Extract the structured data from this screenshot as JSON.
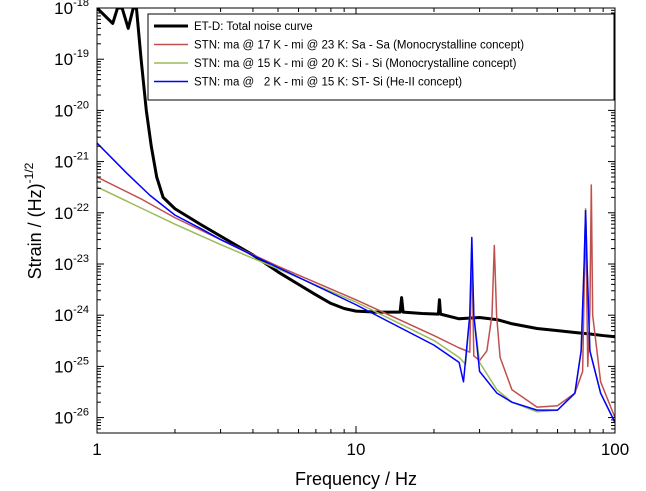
{
  "chart_data": {
    "type": "line",
    "xlabel": "Frequency / Hz",
    "ylabel": "Strain / (Hz)",
    "ylabel_exponent": "-1/2",
    "xscale": "log",
    "yscale": "log",
    "xlim": [
      1,
      100
    ],
    "ylim": [
      5e-27,
      1e-18
    ],
    "x_tick_labels": [
      "1",
      "10",
      "100"
    ],
    "y_tick_labels": [
      {
        "base": "10",
        "exp": "-18"
      },
      {
        "base": "10",
        "exp": "-19"
      },
      {
        "base": "10",
        "exp": "-20"
      },
      {
        "base": "10",
        "exp": "-21"
      },
      {
        "base": "10",
        "exp": "-22"
      },
      {
        "base": "10",
        "exp": "-23"
      },
      {
        "base": "10",
        "exp": "-24"
      },
      {
        "base": "10",
        "exp": "-25"
      },
      {
        "base": "10",
        "exp": "-26"
      }
    ],
    "legend_position": "top-right",
    "series": [
      {
        "name": "ET-D: Total noise curve",
        "color": "#000000",
        "width": 3,
        "points": [
          [
            1.0,
            1e-18
          ],
          [
            1.15,
            5e-19
          ],
          [
            1.2,
            1e-18
          ],
          [
            1.25,
            1e-18
          ],
          [
            1.32,
            4e-19
          ],
          [
            1.38,
            1e-18
          ],
          [
            1.42,
            1e-18
          ],
          [
            1.48,
            1e-19
          ],
          [
            1.55,
            1e-20
          ],
          [
            1.62,
            2e-21
          ],
          [
            1.7,
            5e-22
          ],
          [
            1.8,
            2e-22
          ],
          [
            2.0,
            1.2e-22
          ],
          [
            2.5,
            6e-23
          ],
          [
            3.0,
            3.5e-23
          ],
          [
            4.0,
            1.5e-23
          ],
          [
            5.0,
            7e-24
          ],
          [
            6.0,
            4e-24
          ],
          [
            7.0,
            2.5e-24
          ],
          [
            8.0,
            1.7e-24
          ],
          [
            9.0,
            1.35e-24
          ],
          [
            10.0,
            1.2e-24
          ],
          [
            12.0,
            1.15e-24
          ],
          [
            14.8,
            1.15e-24
          ],
          [
            15.0,
            2.2e-24
          ],
          [
            15.2,
            1.15e-24
          ],
          [
            18.0,
            1.08e-24
          ],
          [
            20.8,
            1.05e-24
          ],
          [
            21.0,
            2e-24
          ],
          [
            21.2,
            1.05e-24
          ],
          [
            25.0,
            8.5e-25
          ],
          [
            30.0,
            9e-25
          ],
          [
            35.0,
            8.2e-25
          ],
          [
            40.0,
            6.8e-25
          ],
          [
            50.0,
            5.5e-25
          ],
          [
            60.0,
            5e-25
          ],
          [
            70.0,
            4.6e-25
          ],
          [
            80.0,
            4.3e-25
          ],
          [
            90.0,
            4e-25
          ],
          [
            100.0,
            3.8e-25
          ]
        ]
      },
      {
        "name": "STN: ma @ 17 K - mi @ 23 K: Sa - Sa (Monocrystalline concept)",
        "color": "#c0504d",
        "width": 1.5,
        "points": [
          [
            1.0,
            5e-22
          ],
          [
            1.5,
            1.8e-22
          ],
          [
            2.0,
            8e-23
          ],
          [
            3.0,
            3e-23
          ],
          [
            5.0,
            9e-24
          ],
          [
            10.0,
            2e-24
          ],
          [
            20.0,
            4e-25
          ],
          [
            25.0,
            2.3e-25
          ],
          [
            27.5,
            1.9e-25
          ],
          [
            28.0,
            2e-23
          ],
          [
            28.5,
            1.6e-25
          ],
          [
            30.0,
            1.3e-25
          ],
          [
            32.0,
            2e-25
          ],
          [
            33.5,
            1e-24
          ],
          [
            34.2,
            2.3e-23
          ],
          [
            34.9,
            1e-24
          ],
          [
            36.0,
            1.5e-25
          ],
          [
            40.0,
            3.5e-26
          ],
          [
            50.0,
            1.6e-26
          ],
          [
            60.0,
            1.7e-26
          ],
          [
            70.0,
            3e-26
          ],
          [
            75.0,
            8e-26
          ],
          [
            77.0,
            1.2e-22
          ],
          [
            78.5,
            1e-25
          ],
          [
            80.0,
            1.3e-24
          ],
          [
            81.0,
            3.5e-22
          ],
          [
            82.0,
            1e-24
          ],
          [
            88.0,
            5e-26
          ],
          [
            100.0,
            1e-26
          ]
        ]
      },
      {
        "name": "STN: ma @ 15 K - mi @ 20 K: Si - Si (Monocrystalline concept)",
        "color": "#9bbb59",
        "width": 1.5,
        "points": [
          [
            1.0,
            3.2e-22
          ],
          [
            1.5,
            1.2e-22
          ],
          [
            2.0,
            6e-23
          ],
          [
            3.0,
            2.4e-23
          ],
          [
            5.0,
            8e-24
          ],
          [
            10.0,
            1.8e-24
          ],
          [
            20.0,
            3.2e-25
          ],
          [
            25.0,
            1.5e-25
          ],
          [
            26.5,
            1.1e-25
          ],
          [
            27.5,
            1e-24
          ],
          [
            28.0,
            2e-23
          ],
          [
            28.5,
            1e-24
          ],
          [
            30.0,
            1.2e-25
          ],
          [
            35.0,
            3.5e-26
          ],
          [
            40.0,
            2e-26
          ],
          [
            50.0,
            1.3e-26
          ],
          [
            60.0,
            1.4e-26
          ],
          [
            70.0,
            3e-26
          ],
          [
            74.0,
            2e-25
          ],
          [
            76.0,
            1e-23
          ],
          [
            77.0,
            1.2e-22
          ],
          [
            78.0,
            1e-23
          ],
          [
            80.0,
            2e-25
          ],
          [
            88.0,
            3e-26
          ],
          [
            100.0,
            8e-27
          ]
        ]
      },
      {
        "name": "STN: ma @   2 K - mi @ 15 K: ST- Si (He-II concept)",
        "color": "#0000ff",
        "width": 1.5,
        "points": [
          [
            1.0,
            2.3e-21
          ],
          [
            1.3,
            6e-22
          ],
          [
            1.6,
            2.2e-22
          ],
          [
            2.0,
            9e-23
          ],
          [
            2.5,
            5e-23
          ],
          [
            3.0,
            3e-23
          ],
          [
            5.0,
            8.5e-24
          ],
          [
            10.0,
            1.6e-24
          ],
          [
            20.0,
            2.6e-25
          ],
          [
            25.0,
            1.2e-25
          ],
          [
            26.0,
            5e-26
          ],
          [
            27.5,
            1e-24
          ],
          [
            28.0,
            3.3e-23
          ],
          [
            28.5,
            1e-24
          ],
          [
            30.0,
            8e-26
          ],
          [
            35.0,
            3e-26
          ],
          [
            40.0,
            2e-26
          ],
          [
            50.0,
            1.4e-26
          ],
          [
            60.0,
            1.4e-26
          ],
          [
            70.0,
            3e-26
          ],
          [
            74.0,
            2e-25
          ],
          [
            76.0,
            1e-23
          ],
          [
            77.0,
            1.1e-22
          ],
          [
            78.0,
            1e-23
          ],
          [
            80.0,
            2e-25
          ],
          [
            88.0,
            3e-26
          ],
          [
            100.0,
            8e-27
          ]
        ]
      }
    ]
  }
}
